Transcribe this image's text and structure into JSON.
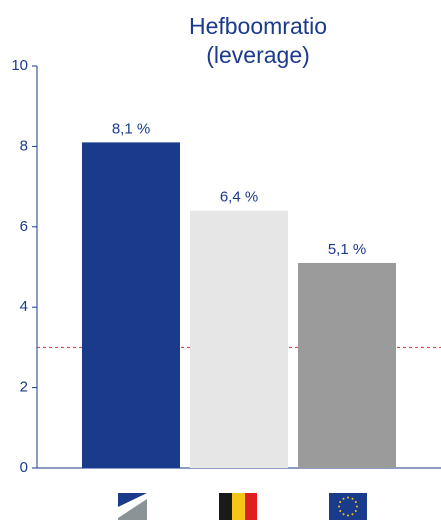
{
  "chart_data": {
    "type": "bar",
    "title_lines": [
      "Hefboomratio",
      "(leverage)"
    ],
    "categories": [
      "",
      "",
      ""
    ],
    "values": [
      8.1,
      6.4,
      5.1
    ],
    "value_labels": [
      "8,1 %",
      "6,4 %",
      "5,1 %"
    ],
    "bar_colors": [
      "#1a3a8c",
      "#e6e6e6",
      "#9b9b9b"
    ],
    "ylim": [
      0,
      10
    ],
    "yticks": [
      0,
      2,
      4,
      6,
      8,
      10
    ],
    "ytick_labels": [
      "0",
      "2",
      "4",
      "6",
      "8",
      "10"
    ],
    "reference_line": {
      "value": 3,
      "color": "#e03030",
      "style": "dashed"
    },
    "category_icons": [
      "bank-logo-icon",
      "belgium-flag-icon",
      "eu-flag-icon"
    ],
    "grid": false,
    "legend": "none"
  }
}
